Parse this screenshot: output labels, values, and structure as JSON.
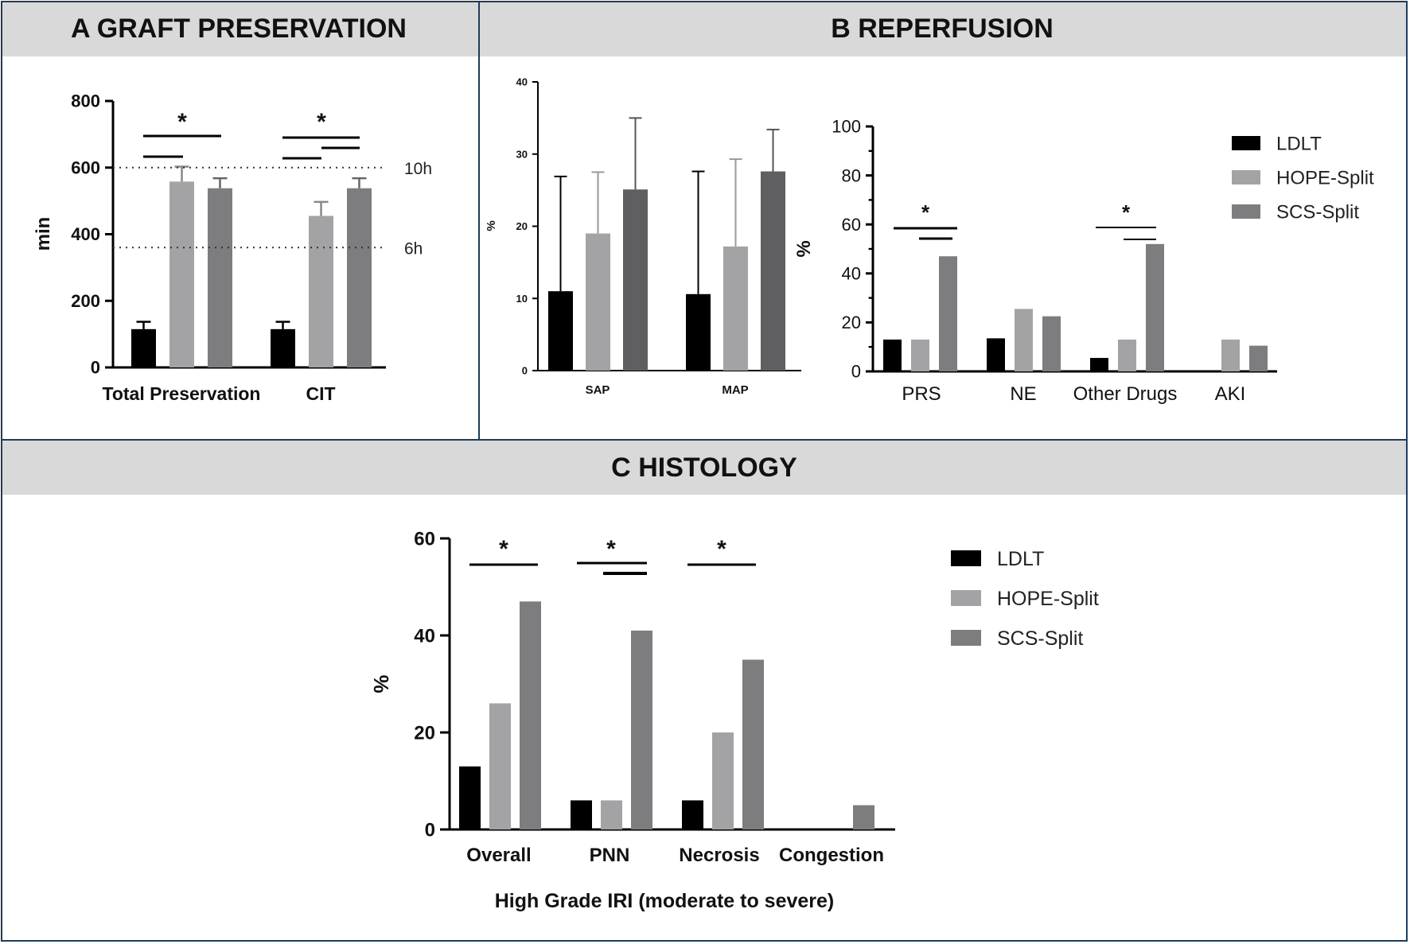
{
  "panels": {
    "a_letter": "A",
    "a_title": "GRAFT PRESERVATION",
    "b_letter": "B",
    "b_title": "REPERFUSION",
    "c_letter": "C",
    "c_title": "HISTOLOGY"
  },
  "colors": {
    "LDLT": "#000000",
    "HOPE-Split": "#a3a3a5",
    "SCS-Split": "#7d7d7f",
    "SCS-Split-B1": "#5f5f61",
    "header_bg": "#d9d9d9",
    "frame": "#1f3c5a"
  },
  "legend_b": [
    "LDLT",
    "HOPE-Split",
    "SCS-Split"
  ],
  "legend_c": [
    "LDLT",
    "HOPE-Split",
    "SCS-Split"
  ],
  "chart_data": [
    {
      "id": "A",
      "type": "bar",
      "categories": [
        "Total Preservation",
        "CIT"
      ],
      "ylabel": "min",
      "ylim": [
        0,
        800
      ],
      "yticks": [
        "0",
        "200",
        "400",
        "600",
        "800"
      ],
      "series": [
        {
          "values": [
            115,
            115
          ],
          "errors": [
            22,
            22
          ]
        },
        {
          "values": [
            558,
            455
          ],
          "errors": [
            45,
            42
          ]
        },
        {
          "values": [
            538,
            538
          ],
          "errors": [
            30,
            30
          ]
        }
      ],
      "reference_lines": [
        {
          "y": 600,
          "label": "10h"
        },
        {
          "y": 360,
          "label": "6h"
        }
      ],
      "significance": "*"
    },
    {
      "id": "B1",
      "type": "bar",
      "categories": [
        "SAP",
        "MAP"
      ],
      "ylabel": "%",
      "ylim": [
        0,
        40
      ],
      "yticks": [
        "0",
        "10",
        "20",
        "30",
        "40"
      ],
      "series": [
        {
          "values": [
            11,
            10.6
          ],
          "errors": [
            15.9,
            17
          ]
        },
        {
          "values": [
            19,
            17.2
          ],
          "errors": [
            8.5,
            12.1
          ]
        },
        {
          "values": [
            25.1,
            27.6
          ],
          "errors": [
            9.9,
            5.8
          ]
        }
      ]
    },
    {
      "id": "B2",
      "type": "bar",
      "categories": [
        "PRS",
        "NE",
        "Other Drugs",
        "AKI"
      ],
      "ylabel": "%",
      "ylim": [
        0,
        100
      ],
      "yticks": [
        "0",
        "20",
        "40",
        "60",
        "80",
        "100"
      ],
      "series": [
        {
          "name": "LDLT",
          "values": [
            13,
            13.5,
            5.5,
            0
          ]
        },
        {
          "name": "HOPE-Split",
          "values": [
            13,
            25.5,
            13,
            13
          ]
        },
        {
          "name": "SCS-Split",
          "values": [
            47,
            22.5,
            52,
            10.5
          ]
        }
      ],
      "significance": "*"
    },
    {
      "id": "C",
      "type": "bar",
      "categories": [
        "Overall",
        "PNN",
        "Necrosis",
        "Congestion"
      ],
      "xlabel": "High Grade IRI (moderate to severe)",
      "ylabel": "%",
      "ylim": [
        0,
        60
      ],
      "yticks": [
        "0",
        "20",
        "40",
        "60"
      ],
      "series": [
        {
          "name": "LDLT",
          "values": [
            13,
            6,
            6,
            0
          ]
        },
        {
          "name": "HOPE-Split",
          "values": [
            26,
            6,
            20,
            0
          ]
        },
        {
          "name": "SCS-Split",
          "values": [
            47,
            41,
            35,
            5
          ]
        }
      ],
      "significance": "*"
    }
  ]
}
